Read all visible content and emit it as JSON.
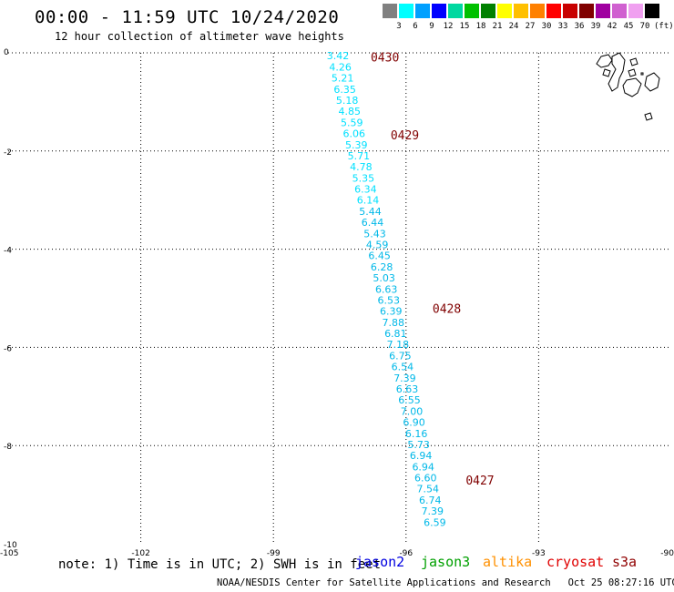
{
  "header": {
    "title": "00:00 - 11:59 UTC 10/24/2020",
    "subtitle": "12 hour collection of altimeter wave heights"
  },
  "legend": {
    "labels": [
      "3",
      "6",
      "9",
      "12",
      "15",
      "18",
      "21",
      "24",
      "27",
      "30",
      "33",
      "36",
      "39",
      "42",
      "45",
      "70"
    ],
    "colors": [
      "#808080",
      "#00ffff",
      "#00a0ff",
      "#0000ff",
      "#00d8a0",
      "#00c000",
      "#008000",
      "#ffff00",
      "#ffc000",
      "#ff8000",
      "#ff0000",
      "#c80000",
      "#800000",
      "#a000a0",
      "#d060d0",
      "#f0a0f0",
      "#000000"
    ],
    "unit": "(ft)"
  },
  "map": {
    "x_ticks": [
      {
        "value": -105,
        "label": "-105"
      },
      {
        "value": -102,
        "label": "-102"
      },
      {
        "value": -99,
        "label": "-99"
      },
      {
        "value": -96,
        "label": "-96"
      },
      {
        "value": -93,
        "label": "-93"
      },
      {
        "value": -90,
        "label": "-90"
      }
    ],
    "y_ticks": [
      {
        "value": 0,
        "label": "0"
      },
      {
        "value": -2,
        "label": "-2"
      },
      {
        "value": -4,
        "label": "-4"
      },
      {
        "value": -6,
        "label": "-6"
      },
      {
        "value": -8,
        "label": "-8"
      },
      {
        "value": -10,
        "label": "-10"
      }
    ],
    "xlim": [
      -105,
      -90
    ],
    "ylim": [
      -10,
      0
    ],
    "track_color_light": "#00e0ff",
    "track_color_dark": "#00b8e8",
    "time_color": "#800000",
    "land_name": "galapagos-islands"
  },
  "chart_data": {
    "type": "scatter",
    "title": "00:00 - 11:59 UTC 10/24/2020",
    "subtitle": "12 hour collection of altimeter wave heights",
    "xlim": [
      -105,
      -90
    ],
    "ylim": [
      -10,
      0
    ],
    "grid": true,
    "track": {
      "lon_start": -97.54,
      "lat_start": -0.06,
      "lon_end": -95.35,
      "lat_end": -9.56,
      "values": [
        "3.42",
        "4.26",
        "5.21",
        "6.35",
        "5.18",
        "4.85",
        "5.59",
        "6.06",
        "5.39",
        "5.71",
        "4.78",
        "5.35",
        "6.34",
        "6.14",
        "5.44",
        "6.44",
        "5.43",
        "4.59",
        "6.45",
        "6.28",
        "5.03",
        "6.63",
        "6.53",
        "6.39",
        "7.88",
        "6.81",
        "7.18",
        "6.75",
        "6.54",
        "7.39",
        "6.63",
        "6.55",
        "7.00",
        "6.90",
        "6.16",
        "5.73",
        "6.94",
        "6.94",
        "6.60",
        "7.54",
        "6.74",
        "7.39",
        "6.59"
      ]
    },
    "time_labels": [
      {
        "text": "0430",
        "lon": -96.8,
        "lat": -0.08
      },
      {
        "text": "0429",
        "lon": -96.35,
        "lat": -1.67
      },
      {
        "text": "0428",
        "lon": -95.4,
        "lat": -5.2
      },
      {
        "text": "0427",
        "lon": -94.65,
        "lat": -8.7
      }
    ]
  },
  "footer": {
    "note": "note: 1) Time is in UTC; 2) SWH is in feet",
    "missions": [
      {
        "name": "jason2",
        "color": "#0000e0"
      },
      {
        "name": "jason3",
        "color": "#00a000"
      },
      {
        "name": "altika",
        "color": "#ff9000"
      },
      {
        "name": "cryosat",
        "color": "#e00000"
      },
      {
        "name": "s3a",
        "color": "#900000"
      }
    ],
    "credit": "NOAA/NESDIS Center for Satellite Applications and Research   Oct 25 08:27:16 UTC 2020"
  }
}
